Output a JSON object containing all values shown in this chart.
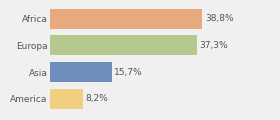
{
  "categories": [
    "Africa",
    "Europa",
    "Asia",
    "America"
  ],
  "values": [
    38.8,
    37.3,
    15.7,
    8.2
  ],
  "labels": [
    "38,8%",
    "37,3%",
    "15,7%",
    "8,2%"
  ],
  "bar_colors": [
    "#e8a97e",
    "#b5c98e",
    "#6e8fbc",
    "#f0d080"
  ],
  "background_color": "#f0f0f0",
  "xlim": [
    0,
    50
  ],
  "bar_height": 0.75,
  "label_fontsize": 6.5,
  "tick_fontsize": 6.5
}
